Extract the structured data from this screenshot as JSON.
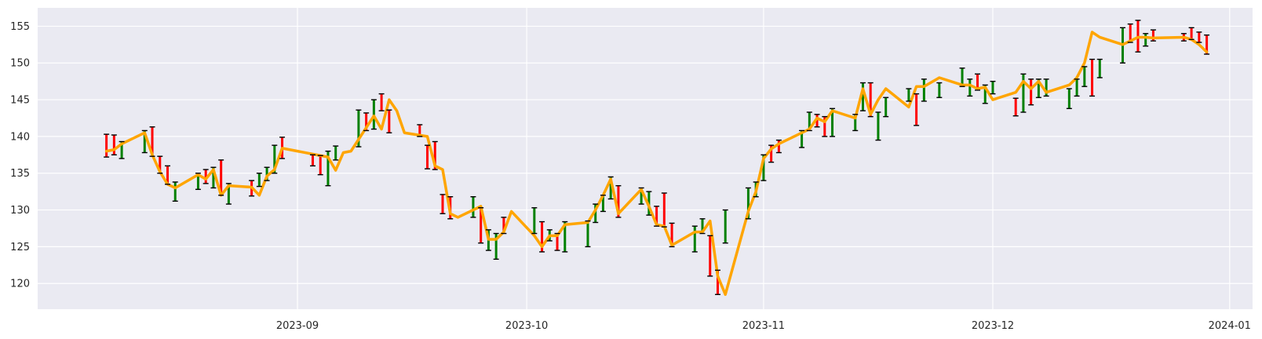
{
  "chart_data": {
    "type": "line",
    "title": "",
    "xlabel": "",
    "ylabel": "",
    "xlim": [
      "2023-07-29",
      "2024-01-04"
    ],
    "ylim": [
      116.5,
      157.5
    ],
    "grid": true,
    "x_ticks": [
      "2023-09-01",
      "2023-10-01",
      "2023-11-01",
      "2023-12-01",
      "2024-01-01"
    ],
    "x_tick_labels": [
      "2023-09",
      "2023-10",
      "2023-11",
      "2023-12",
      "2024-01"
    ],
    "y_ticks": [
      120,
      125,
      130,
      135,
      140,
      145,
      150,
      155
    ],
    "y_tick_labels": [
      "120",
      "125",
      "130",
      "135",
      "140",
      "145",
      "150",
      "155"
    ],
    "colors": {
      "line": "#FFA500",
      "up": "#008000",
      "down": "#FF0000",
      "cap": "#000000",
      "background": "#EAEAF2",
      "grid": "#FFFFFF"
    },
    "close_line": {
      "x": [
        "2023-08-07",
        "2023-08-08",
        "2023-08-09",
        "2023-08-12",
        "2023-08-13",
        "2023-08-14",
        "2023-08-15",
        "2023-08-16",
        "2023-08-19",
        "2023-08-20",
        "2023-08-21",
        "2023-08-22",
        "2023-08-23",
        "2023-08-26",
        "2023-08-27",
        "2023-08-28",
        "2023-08-29",
        "2023-08-30",
        "2023-09-01",
        "2023-09-05",
        "2023-09-06",
        "2023-09-07",
        "2023-09-08",
        "2023-09-11",
        "2023-09-12",
        "2023-09-13",
        "2023-09-14",
        "2023-09-15",
        "2023-09-18",
        "2023-09-19",
        "2023-09-20",
        "2023-09-21",
        "2023-09-22",
        "2023-09-25",
        "2023-09-26",
        "2023-09-27",
        "2023-09-28",
        "2023-09-29",
        "2023-10-02",
        "2023-10-03",
        "2023-10-04",
        "2023-10-05",
        "2023-10-06",
        "2023-10-09",
        "2023-10-10",
        "2023-10-11",
        "2023-10-12",
        "2023-10-13",
        "2023-10-16",
        "2023-10-17",
        "2023-10-18",
        "2023-10-19",
        "2023-10-20",
        "2023-10-23",
        "2023-10-24",
        "2023-10-25",
        "2023-10-26",
        "2023-10-27",
        "2023-10-30",
        "2023-10-31",
        "2023-11-01",
        "2023-11-02",
        "2023-11-03",
        "2023-11-06",
        "2023-11-07",
        "2023-11-08",
        "2023-11-09",
        "2023-11-10",
        "2023-11-13",
        "2023-11-14",
        "2023-11-15",
        "2023-11-16",
        "2023-11-17",
        "2023-11-20",
        "2023-11-21",
        "2023-11-22",
        "2023-11-24",
        "2023-11-27",
        "2023-11-28",
        "2023-11-29",
        "2023-11-30",
        "2023-12-01",
        "2023-12-04",
        "2023-12-05",
        "2023-12-06",
        "2023-12-07",
        "2023-12-08",
        "2023-12-11",
        "2023-12-12",
        "2023-12-13",
        "2023-12-14",
        "2023-12-15",
        "2023-12-18",
        "2023-12-19",
        "2023-12-20",
        "2023-12-21",
        "2023-12-22",
        "2023-12-26",
        "2023-12-27",
        "2023-12-28",
        "2023-12-29"
      ],
      "values": [
        138.0,
        138.2,
        139.0,
        140.5,
        137.5,
        135.2,
        133.5,
        133.0,
        134.8,
        134.2,
        135.5,
        132.0,
        133.3,
        133.1,
        132.0,
        134.6,
        135.5,
        138.4,
        138.0,
        137.2,
        135.4,
        137.8,
        138.0,
        142.8,
        141.0,
        145.0,
        143.5,
        140.5,
        140.0,
        136.0,
        135.5,
        129.5,
        129.0,
        130.5,
        126.0,
        126.0,
        127.0,
        129.8,
        126.5,
        125.0,
        126.5,
        126.5,
        128.0,
        128.3,
        130.0,
        132.0,
        134.2,
        129.5,
        132.8,
        130.5,
        128.0,
        127.8,
        125.2,
        127.0,
        127.0,
        128.5,
        121.0,
        118.5,
        129.8,
        132.5,
        137.0,
        138.3,
        139.0,
        140.5,
        141.0,
        142.5,
        142.0,
        143.5,
        142.5,
        146.5,
        143.0,
        145.0,
        146.5,
        144.0,
        146.8,
        146.8,
        148.0,
        147.0,
        147.0,
        146.5,
        146.7,
        145.0,
        146.0,
        147.5,
        146.5,
        147.5,
        146.0,
        147.0,
        148.0,
        150.0,
        154.2,
        153.5,
        152.5,
        153.0,
        153.5,
        153.5,
        153.4,
        153.5,
        153.2,
        152.5,
        151.5
      ]
    },
    "bars": [
      {
        "x": "2023-08-07",
        "low": 137.2,
        "high": 140.3,
        "dir": "down"
      },
      {
        "x": "2023-08-08",
        "low": 137.5,
        "high": 140.2,
        "dir": "down"
      },
      {
        "x": "2023-08-09",
        "low": 137.0,
        "high": 139.3,
        "dir": "up"
      },
      {
        "x": "2023-08-12",
        "low": 137.8,
        "high": 140.8,
        "dir": "up"
      },
      {
        "x": "2023-08-13",
        "low": 137.3,
        "high": 141.3,
        "dir": "down"
      },
      {
        "x": "2023-08-14",
        "low": 135.0,
        "high": 137.3,
        "dir": "down"
      },
      {
        "x": "2023-08-15",
        "low": 133.5,
        "high": 136.0,
        "dir": "down"
      },
      {
        "x": "2023-08-16",
        "low": 131.2,
        "high": 133.8,
        "dir": "up"
      },
      {
        "x": "2023-08-19",
        "low": 132.8,
        "high": 135.0,
        "dir": "up"
      },
      {
        "x": "2023-08-20",
        "low": 133.6,
        "high": 135.5,
        "dir": "down"
      },
      {
        "x": "2023-08-21",
        "low": 133.0,
        "high": 135.8,
        "dir": "up"
      },
      {
        "x": "2023-08-22",
        "low": 132.0,
        "high": 136.8,
        "dir": "down"
      },
      {
        "x": "2023-08-23",
        "low": 130.8,
        "high": 133.6,
        "dir": "up"
      },
      {
        "x": "2023-08-26",
        "low": 131.9,
        "high": 134.0,
        "dir": "down"
      },
      {
        "x": "2023-08-27",
        "low": 133.2,
        "high": 135.0,
        "dir": "up"
      },
      {
        "x": "2023-08-28",
        "low": 134.0,
        "high": 135.8,
        "dir": "up"
      },
      {
        "x": "2023-08-29",
        "low": 135.0,
        "high": 138.8,
        "dir": "up"
      },
      {
        "x": "2023-08-30",
        "low": 137.0,
        "high": 139.9,
        "dir": "down"
      },
      {
        "x": "2023-09-03",
        "low": 136.0,
        "high": 137.5,
        "dir": "down"
      },
      {
        "x": "2023-09-04",
        "low": 134.8,
        "high": 137.4,
        "dir": "down"
      },
      {
        "x": "2023-09-05",
        "low": 133.3,
        "high": 138.0,
        "dir": "up"
      },
      {
        "x": "2023-09-06",
        "low": 136.8,
        "high": 138.7,
        "dir": "up"
      },
      {
        "x": "2023-09-09",
        "low": 138.6,
        "high": 143.6,
        "dir": "up"
      },
      {
        "x": "2023-09-10",
        "low": 140.8,
        "high": 143.2,
        "dir": "down"
      },
      {
        "x": "2023-09-11",
        "low": 141.0,
        "high": 145.0,
        "dir": "up"
      },
      {
        "x": "2023-09-12",
        "low": 143.5,
        "high": 145.8,
        "dir": "down"
      },
      {
        "x": "2023-09-13",
        "low": 140.5,
        "high": 143.6,
        "dir": "down"
      },
      {
        "x": "2023-09-17",
        "low": 140.0,
        "high": 141.6,
        "dir": "down"
      },
      {
        "x": "2023-09-18",
        "low": 135.6,
        "high": 138.8,
        "dir": "down"
      },
      {
        "x": "2023-09-19",
        "low": 135.5,
        "high": 139.3,
        "dir": "down"
      },
      {
        "x": "2023-09-20",
        "low": 129.5,
        "high": 132.1,
        "dir": "down"
      },
      {
        "x": "2023-09-21",
        "low": 128.8,
        "high": 131.8,
        "dir": "down"
      },
      {
        "x": "2023-09-24",
        "low": 129.0,
        "high": 131.8,
        "dir": "up"
      },
      {
        "x": "2023-09-25",
        "low": 125.5,
        "high": 130.3,
        "dir": "down"
      },
      {
        "x": "2023-09-26",
        "low": 124.5,
        "high": 127.3,
        "dir": "up"
      },
      {
        "x": "2023-09-27",
        "low": 123.3,
        "high": 126.8,
        "dir": "up"
      },
      {
        "x": "2023-09-28",
        "low": 126.8,
        "high": 129.0,
        "dir": "down"
      },
      {
        "x": "2023-10-02",
        "low": 126.8,
        "high": 130.3,
        "dir": "up"
      },
      {
        "x": "2023-10-03",
        "low": 124.3,
        "high": 128.4,
        "dir": "down"
      },
      {
        "x": "2023-10-04",
        "low": 125.8,
        "high": 127.3,
        "dir": "up"
      },
      {
        "x": "2023-10-05",
        "low": 124.5,
        "high": 126.8,
        "dir": "down"
      },
      {
        "x": "2023-10-06",
        "low": 124.3,
        "high": 128.4,
        "dir": "up"
      },
      {
        "x": "2023-10-09",
        "low": 125.0,
        "high": 128.5,
        "dir": "up"
      },
      {
        "x": "2023-10-10",
        "low": 128.3,
        "high": 130.8,
        "dir": "up"
      },
      {
        "x": "2023-10-11",
        "low": 129.8,
        "high": 132.0,
        "dir": "up"
      },
      {
        "x": "2023-10-12",
        "low": 131.5,
        "high": 134.5,
        "dir": "up"
      },
      {
        "x": "2023-10-13",
        "low": 129.0,
        "high": 133.3,
        "dir": "down"
      },
      {
        "x": "2023-10-16",
        "low": 130.8,
        "high": 133.0,
        "dir": "up"
      },
      {
        "x": "2023-10-17",
        "low": 129.3,
        "high": 132.5,
        "dir": "up"
      },
      {
        "x": "2023-10-18",
        "low": 127.8,
        "high": 130.5,
        "dir": "down"
      },
      {
        "x": "2023-10-19",
        "low": 127.7,
        "high": 132.3,
        "dir": "down"
      },
      {
        "x": "2023-10-20",
        "low": 125.0,
        "high": 128.2,
        "dir": "down"
      },
      {
        "x": "2023-10-23",
        "low": 124.3,
        "high": 127.8,
        "dir": "up"
      },
      {
        "x": "2023-10-24",
        "low": 126.8,
        "high": 128.8,
        "dir": "up"
      },
      {
        "x": "2023-10-25",
        "low": 121.0,
        "high": 126.5,
        "dir": "down"
      },
      {
        "x": "2023-10-26",
        "low": 118.5,
        "high": 121.8,
        "dir": "down"
      },
      {
        "x": "2023-10-27",
        "low": 125.5,
        "high": 130.0,
        "dir": "up"
      },
      {
        "x": "2023-10-30",
        "low": 128.8,
        "high": 133.0,
        "dir": "up"
      },
      {
        "x": "2023-10-31",
        "low": 131.8,
        "high": 133.8,
        "dir": "up"
      },
      {
        "x": "2023-11-01",
        "low": 134.0,
        "high": 137.5,
        "dir": "up"
      },
      {
        "x": "2023-11-02",
        "low": 136.5,
        "high": 138.8,
        "dir": "down"
      },
      {
        "x": "2023-11-03",
        "low": 137.8,
        "high": 139.5,
        "dir": "down"
      },
      {
        "x": "2023-11-06",
        "low": 138.5,
        "high": 140.8,
        "dir": "up"
      },
      {
        "x": "2023-11-07",
        "low": 140.8,
        "high": 143.3,
        "dir": "up"
      },
      {
        "x": "2023-11-08",
        "low": 141.3,
        "high": 143.0,
        "dir": "down"
      },
      {
        "x": "2023-11-09",
        "low": 140.0,
        "high": 142.7,
        "dir": "down"
      },
      {
        "x": "2023-11-10",
        "low": 140.0,
        "high": 143.8,
        "dir": "up"
      },
      {
        "x": "2023-11-13",
        "low": 140.8,
        "high": 143.0,
        "dir": "up"
      },
      {
        "x": "2023-11-14",
        "low": 143.5,
        "high": 147.3,
        "dir": "up"
      },
      {
        "x": "2023-11-15",
        "low": 142.7,
        "high": 147.3,
        "dir": "down"
      },
      {
        "x": "2023-11-16",
        "low": 139.5,
        "high": 143.3,
        "dir": "up"
      },
      {
        "x": "2023-11-17",
        "low": 142.7,
        "high": 145.3,
        "dir": "up"
      },
      {
        "x": "2023-11-20",
        "low": 144.8,
        "high": 146.5,
        "dir": "up"
      },
      {
        "x": "2023-11-21",
        "low": 141.5,
        "high": 145.8,
        "dir": "down"
      },
      {
        "x": "2023-11-22",
        "low": 144.8,
        "high": 147.8,
        "dir": "up"
      },
      {
        "x": "2023-11-24",
        "low": 145.3,
        "high": 147.3,
        "dir": "up"
      },
      {
        "x": "2023-11-27",
        "low": 146.8,
        "high": 149.3,
        "dir": "up"
      },
      {
        "x": "2023-11-28",
        "low": 145.5,
        "high": 147.8,
        "dir": "up"
      },
      {
        "x": "2023-11-29",
        "low": 146.3,
        "high": 148.5,
        "dir": "down"
      },
      {
        "x": "2023-11-30",
        "low": 144.5,
        "high": 147.0,
        "dir": "up"
      },
      {
        "x": "2023-12-01",
        "low": 145.8,
        "high": 147.5,
        "dir": "up"
      },
      {
        "x": "2023-12-04",
        "low": 142.8,
        "high": 145.2,
        "dir": "down"
      },
      {
        "x": "2023-12-05",
        "low": 143.3,
        "high": 148.5,
        "dir": "up"
      },
      {
        "x": "2023-12-06",
        "low": 144.3,
        "high": 147.8,
        "dir": "down"
      },
      {
        "x": "2023-12-07",
        "low": 145.3,
        "high": 147.8,
        "dir": "up"
      },
      {
        "x": "2023-12-08",
        "low": 145.5,
        "high": 147.8,
        "dir": "up"
      },
      {
        "x": "2023-12-11",
        "low": 143.8,
        "high": 146.5,
        "dir": "up"
      },
      {
        "x": "2023-12-12",
        "low": 145.5,
        "high": 147.8,
        "dir": "up"
      },
      {
        "x": "2023-12-13",
        "low": 146.8,
        "high": 149.5,
        "dir": "up"
      },
      {
        "x": "2023-12-14",
        "low": 145.5,
        "high": 150.5,
        "dir": "down"
      },
      {
        "x": "2023-12-15",
        "low": 148.0,
        "high": 150.5,
        "dir": "up"
      },
      {
        "x": "2023-12-18",
        "low": 150.0,
        "high": 154.8,
        "dir": "up"
      },
      {
        "x": "2023-12-19",
        "low": 152.8,
        "high": 155.3,
        "dir": "down"
      },
      {
        "x": "2023-12-20",
        "low": 151.5,
        "high": 155.8,
        "dir": "down"
      },
      {
        "x": "2023-12-21",
        "low": 152.3,
        "high": 154.0,
        "dir": "up"
      },
      {
        "x": "2023-12-22",
        "low": 153.0,
        "high": 154.5,
        "dir": "down"
      },
      {
        "x": "2023-12-26",
        "low": 153.0,
        "high": 154.0,
        "dir": "down"
      },
      {
        "x": "2023-12-27",
        "low": 153.2,
        "high": 154.8,
        "dir": "down"
      },
      {
        "x": "2023-12-28",
        "low": 152.8,
        "high": 154.2,
        "dir": "down"
      },
      {
        "x": "2023-12-29",
        "low": 151.2,
        "high": 153.8,
        "dir": "down"
      }
    ]
  }
}
